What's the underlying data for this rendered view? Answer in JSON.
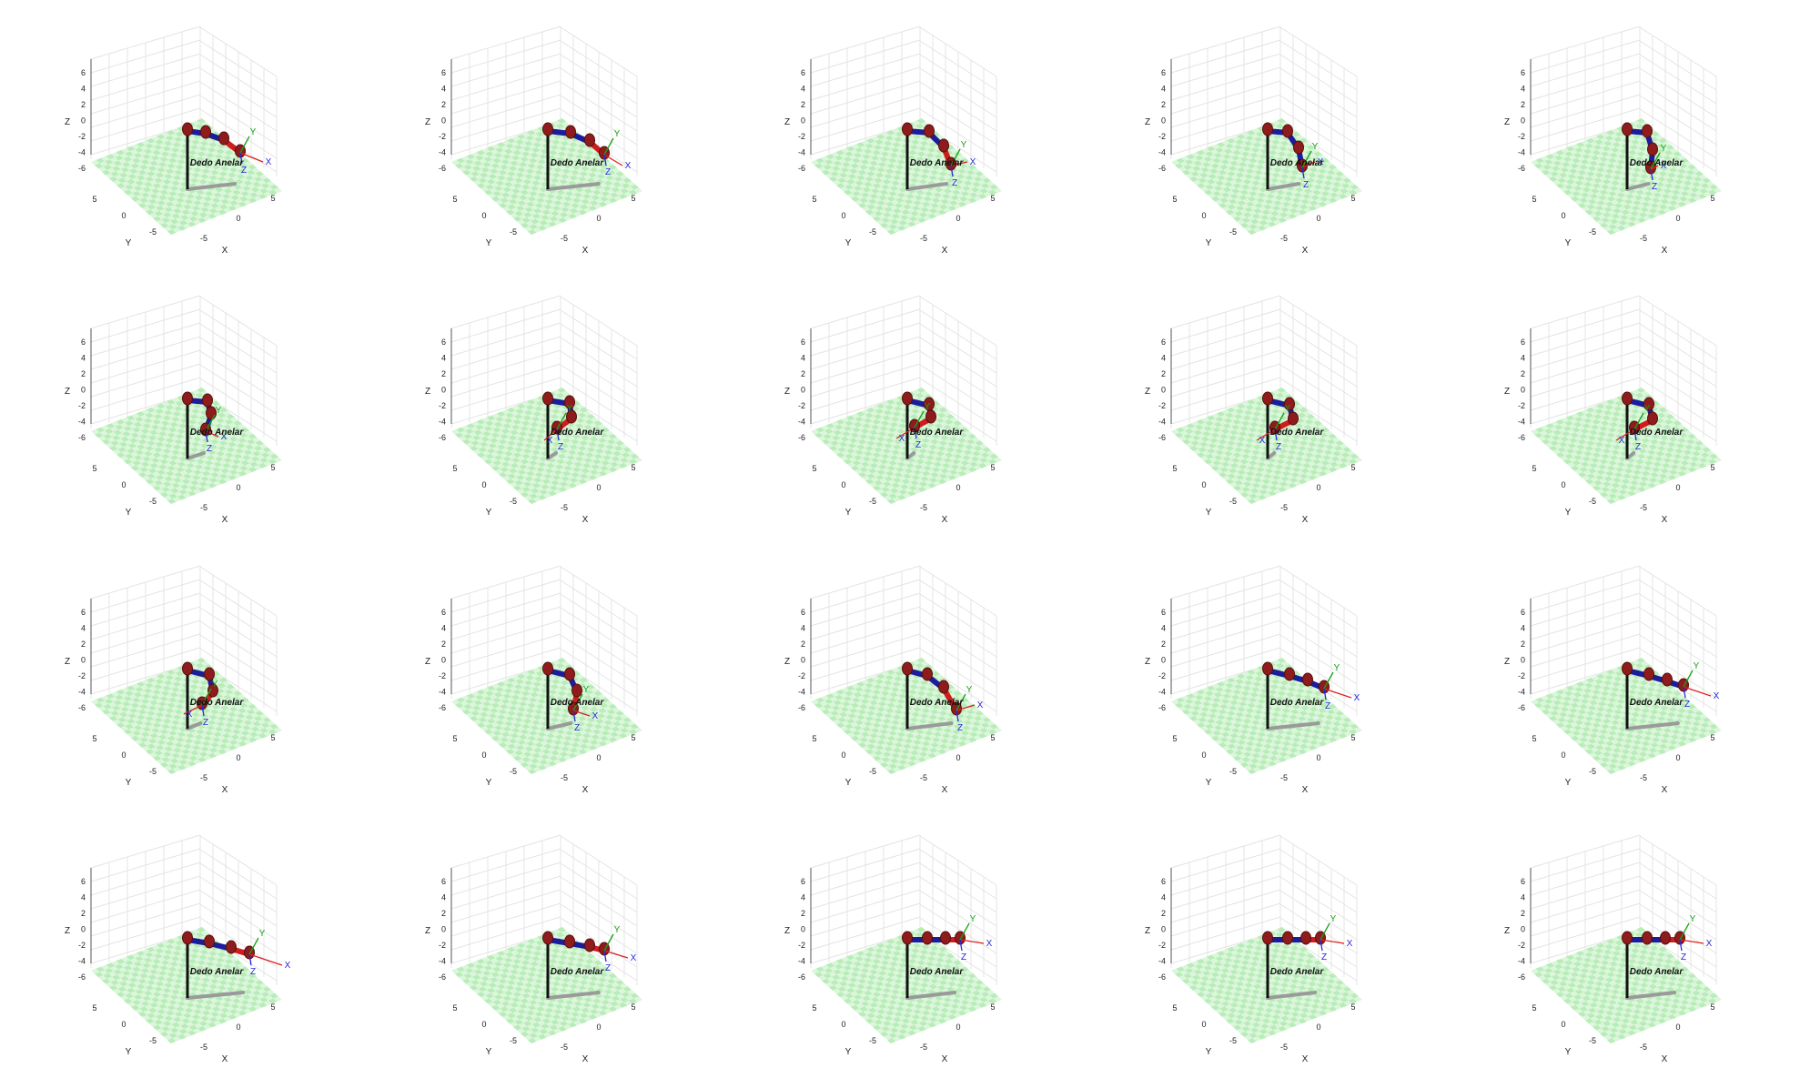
{
  "figure": {
    "robot_label": "Dedo Anelar",
    "axis_labels": {
      "x": "X",
      "y": "Y",
      "z": "Z"
    },
    "z_ticks": [
      "6",
      "4",
      "2",
      "0",
      "-2",
      "-4",
      "-6"
    ],
    "xy_ticks": [
      "5",
      "0",
      "-5"
    ],
    "frame_labels": {
      "x": "X",
      "y": "Y",
      "z": "Z"
    },
    "colors": {
      "floor_a": "#b8ecb8",
      "floor_b": "#dcf6dc",
      "link_blue": "#1c1c9e",
      "joint_red": "#8e1c1c",
      "tip_red": "#d01c1c",
      "base_black": "#111111",
      "shadow_gray": "#9a9a9a",
      "grid_line": "#e4e4e4",
      "axis_x": "#2828d8",
      "axis_y": "#18a018",
      "axis_z": "#2828d8"
    },
    "panels": [
      {
        "pose": [
          [
            0,
            0
          ],
          [
            20,
            3
          ],
          [
            40,
            10
          ],
          [
            58,
            24
          ]
        ],
        "tip": "red",
        "frame_dir": [
          25,
          10
        ]
      },
      {
        "pose": [
          [
            0,
            0
          ],
          [
            25,
            3
          ],
          [
            46,
            12
          ],
          [
            62,
            26
          ]
        ],
        "tip": "red",
        "frame_dir": [
          20,
          12
        ]
      },
      {
        "pose": [
          [
            0,
            0
          ],
          [
            24,
            2
          ],
          [
            40,
            18
          ],
          [
            48,
            38
          ]
        ],
        "tip": "red",
        "frame_dir": [
          18,
          -4
        ]
      },
      {
        "pose": [
          [
            0,
            0
          ],
          [
            22,
            2
          ],
          [
            34,
            20
          ],
          [
            38,
            40
          ]
        ],
        "tip": "blue",
        "frame_dir": [
          14,
          -6
        ]
      },
      {
        "pose": [
          [
            0,
            0
          ],
          [
            22,
            2
          ],
          [
            28,
            22
          ],
          [
            26,
            42
          ]
        ],
        "tip": "blue",
        "frame_dir": [
          8,
          -4
        ]
      },
      {
        "pose": [
          [
            0,
            0
          ],
          [
            22,
            2
          ],
          [
            26,
            16
          ],
          [
            20,
            34
          ]
        ],
        "tip": "blue",
        "frame_dir": [
          14,
          6
        ]
      },
      {
        "pose": [
          [
            0,
            0
          ],
          [
            24,
            4
          ],
          [
            26,
            20
          ],
          [
            10,
            32
          ]
        ],
        "tip": "red",
        "frame_dir": [
          -14,
          12
        ]
      },
      {
        "pose": [
          [
            0,
            0
          ],
          [
            24,
            6
          ],
          [
            26,
            20
          ],
          [
            8,
            30
          ]
        ],
        "tip": "red",
        "frame_dir": [
          -20,
          12
        ]
      },
      {
        "pose": [
          [
            0,
            0
          ],
          [
            24,
            6
          ],
          [
            28,
            22
          ],
          [
            8,
            32
          ]
        ],
        "tip": "red",
        "frame_dir": [
          -20,
          12
        ]
      },
      {
        "pose": [
          [
            0,
            0
          ],
          [
            24,
            6
          ],
          [
            28,
            22
          ],
          [
            8,
            32
          ]
        ],
        "tip": "red",
        "frame_dir": [
          -20,
          12
        ]
      },
      {
        "pose": [
          [
            0,
            0
          ],
          [
            24,
            6
          ],
          [
            28,
            24
          ],
          [
            16,
            38
          ]
        ],
        "tip": "red",
        "frame_dir": [
          -20,
          10
        ]
      },
      {
        "pose": [
          [
            0,
            0
          ],
          [
            24,
            6
          ],
          [
            32,
            24
          ],
          [
            28,
            44
          ]
        ],
        "tip": "red",
        "frame_dir": [
          18,
          6
        ]
      },
      {
        "pose": [
          [
            0,
            0
          ],
          [
            22,
            6
          ],
          [
            40,
            20
          ],
          [
            54,
            44
          ]
        ],
        "tip": "red",
        "frame_dir": [
          20,
          -6
        ]
      },
      {
        "pose": [
          [
            0,
            0
          ],
          [
            24,
            6
          ],
          [
            44,
            12
          ],
          [
            62,
            20
          ]
        ],
        "tip": "blue",
        "frame_dir": [
          30,
          10
        ]
      },
      {
        "pose": [
          [
            0,
            0
          ],
          [
            24,
            6
          ],
          [
            44,
            12
          ],
          [
            62,
            18
          ]
        ],
        "tip": "blue",
        "frame_dir": [
          30,
          10
        ]
      },
      {
        "pose": [
          [
            0,
            0
          ],
          [
            24,
            4
          ],
          [
            48,
            10
          ],
          [
            68,
            16
          ]
        ],
        "tip": "red",
        "frame_dir": [
          36,
          12
        ]
      },
      {
        "pose": [
          [
            0,
            0
          ],
          [
            24,
            4
          ],
          [
            46,
            8
          ],
          [
            62,
            12
          ]
        ],
        "tip": "red",
        "frame_dir": [
          26,
          8
        ]
      },
      {
        "pose": [
          [
            0,
            0
          ],
          [
            22,
            0
          ],
          [
            42,
            0
          ],
          [
            58,
            0
          ]
        ],
        "tip": "red",
        "frame_dir": [
          26,
          4
        ]
      },
      {
        "pose": [
          [
            0,
            0
          ],
          [
            22,
            0
          ],
          [
            42,
            0
          ],
          [
            58,
            0
          ]
        ],
        "tip": "red",
        "frame_dir": [
          26,
          4
        ]
      },
      {
        "pose": [
          [
            0,
            0
          ],
          [
            22,
            0
          ],
          [
            42,
            0
          ],
          [
            58,
            0
          ]
        ],
        "tip": "red",
        "frame_dir": [
          26,
          4
        ]
      }
    ]
  }
}
